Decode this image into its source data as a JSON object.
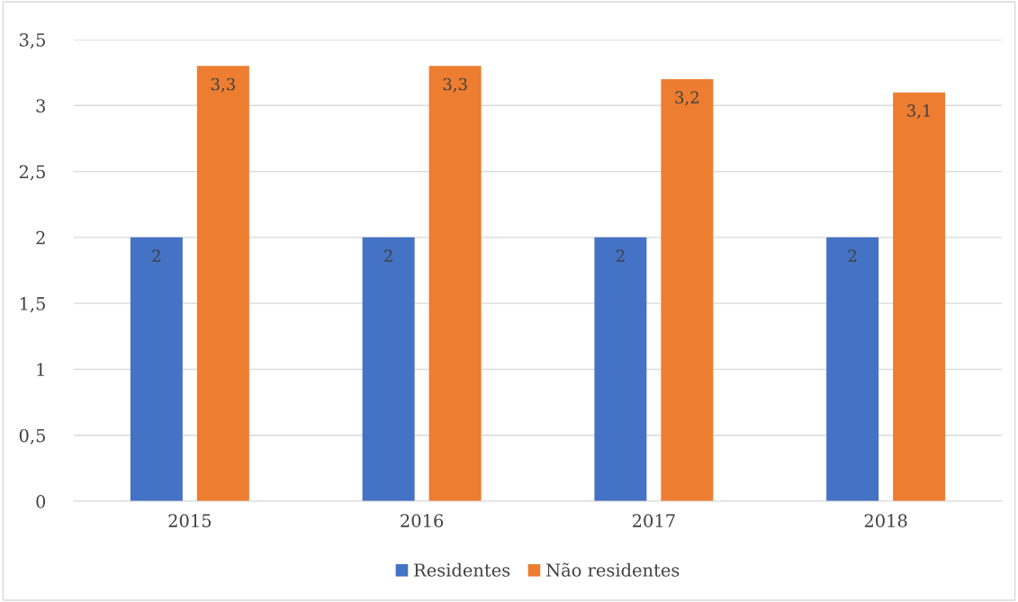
{
  "chart_data": {
    "type": "bar",
    "categories": [
      "2015",
      "2016",
      "2017",
      "2018"
    ],
    "series": [
      {
        "name": "Residentes",
        "color": "#4472c4",
        "values": [
          2,
          2,
          2,
          2
        ],
        "value_labels": [
          "2",
          "2",
          "2",
          "2"
        ]
      },
      {
        "name": "Não residentes",
        "color": "#ed7d31",
        "values": [
          3.3,
          3.3,
          3.2,
          3.1
        ],
        "value_labels": [
          "3,3",
          "3,3",
          "3,2",
          "3,1"
        ]
      }
    ],
    "ylim": [
      0,
      3.5
    ],
    "yticks": [
      0,
      {
        "value": 0.5,
        "label": "0,5"
      },
      1,
      {
        "value": 1.5,
        "label": "1,5"
      },
      2,
      {
        "value": 2.5,
        "label": "2,5"
      },
      3,
      {
        "value": 3.5,
        "label": "3,5"
      }
    ],
    "grid": "y",
    "legend": "bottom"
  }
}
